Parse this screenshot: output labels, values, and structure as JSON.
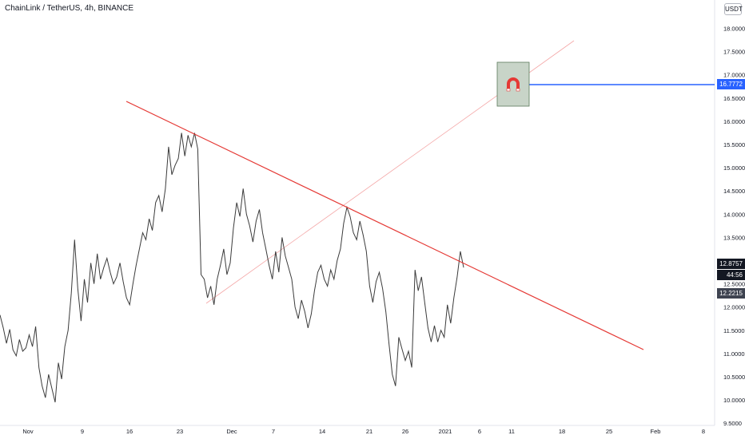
{
  "header": {
    "title": "ChainLink / TetherUS, 4h, BINANCE",
    "currency_button": "USDT"
  },
  "price_badges": {
    "target": "16.7772",
    "last": "12.8757",
    "countdown": "44:56",
    "previous": "12.2215"
  },
  "colors": {
    "price_line": "#3b3b3b",
    "trendline": "#e53935",
    "projection": "#f4a6a6",
    "target_line": "#2962ff",
    "target_badge": "#2962ff",
    "last_badge": "#131722",
    "prev_badge": "#3e4350",
    "magnet_box": "#c8d4c8",
    "magnet": "#e53935"
  },
  "icons": {
    "marker": "magnet-icon"
  },
  "chart_data": {
    "type": "line",
    "series": [
      {
        "values": [
          11.83,
          11.55,
          11.22,
          11.52,
          11.08,
          10.95,
          11.3,
          11.05,
          11.12,
          11.4,
          11.15,
          11.58,
          10.7,
          10.3,
          10.05,
          10.55,
          10.25,
          9.95,
          10.8,
          10.45,
          11.15,
          11.5,
          12.3,
          13.45,
          12.4,
          11.7,
          12.6,
          12.1,
          12.95,
          12.5,
          13.15,
          12.6,
          12.85,
          13.05,
          12.75,
          12.5,
          12.65,
          12.95,
          12.55,
          12.2,
          12.05,
          12.5,
          12.9,
          13.25,
          13.6,
          13.45,
          13.9,
          13.65,
          14.25,
          14.4,
          14.05,
          14.55,
          15.45,
          14.85,
          15.05,
          15.2,
          15.75,
          15.25,
          15.7,
          15.45,
          15.75,
          15.4,
          12.7,
          12.6,
          12.2,
          12.45,
          12.05,
          12.6,
          12.9,
          13.25,
          12.7,
          12.95,
          13.7,
          14.25,
          13.95,
          14.55,
          14.0,
          13.75,
          13.4,
          13.85,
          14.1,
          13.6,
          13.25,
          12.9,
          12.6,
          13.2,
          12.75,
          13.5,
          13.1,
          12.85,
          12.6,
          12.0,
          11.75,
          12.15,
          11.9,
          11.55,
          11.85,
          12.35,
          12.75,
          12.9,
          12.6,
          12.45,
          12.8,
          12.6,
          13.0,
          13.25,
          13.8,
          14.15,
          13.95,
          13.6,
          13.45,
          13.85,
          13.55,
          13.2,
          12.45,
          12.1,
          12.55,
          12.75,
          12.4,
          11.9,
          11.2,
          10.55,
          10.3,
          11.35,
          11.1,
          10.85,
          11.05,
          10.7,
          12.8,
          12.35,
          12.65,
          12.1,
          11.55,
          11.25,
          11.6,
          11.25,
          11.5,
          11.35,
          12.05,
          11.65,
          12.2,
          12.65,
          13.2,
          12.85
        ]
      }
    ],
    "x_labels": [
      "Nov",
      "9",
      "16",
      "23",
      "Dec",
      "7",
      "14",
      "21",
      "26",
      "2021",
      "6",
      "11",
      "18",
      "25",
      "Feb",
      "8"
    ],
    "y_ticks": [
      "18.0000",
      "17.5000",
      "17.0000",
      "16.5000",
      "16.0000",
      "15.5000",
      "15.0000",
      "14.5000",
      "14.0000",
      "13.5000",
      "13.0000",
      "12.5000",
      "12.0000",
      "11.5000",
      "11.0000",
      "10.5000",
      "10.0000",
      "9.5000"
    ],
    "ylim": [
      9.5,
      18.2
    ],
    "price_scale": "right",
    "grid": false,
    "annotations": {
      "descending_trendline": {
        "from": [
          "Nov 16",
          16.4
        ],
        "to": [
          "Feb 3",
          11.0
        ]
      },
      "projection_line": {
        "from": [
          "Nov 25",
          12.05
        ],
        "to": [
          "Jan 18",
          17.75
        ]
      },
      "target_level": 16.7772
    }
  }
}
